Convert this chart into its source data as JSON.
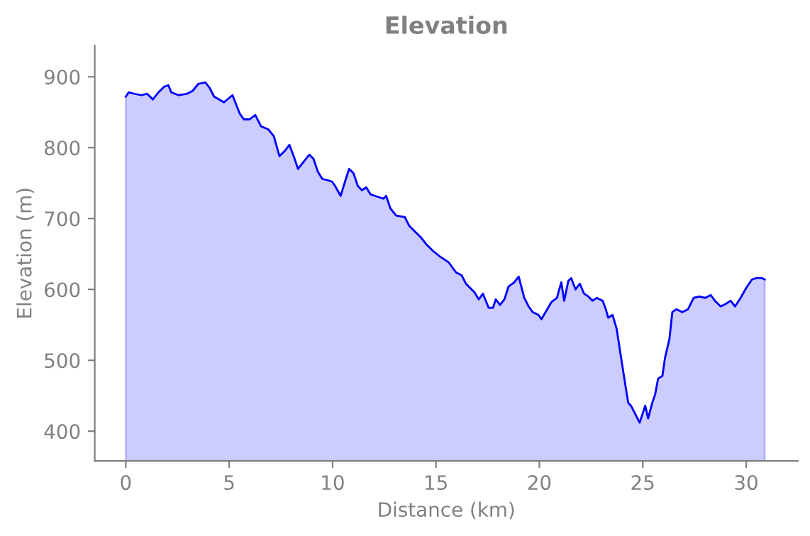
{
  "chart_data": {
    "type": "area",
    "title": "Elevation",
    "xlabel": "Distance (km)",
    "ylabel": "Elevation (m)",
    "xlim": [
      -1.5,
      32.5
    ],
    "ylim": [
      358,
      944
    ],
    "xticks": [
      0,
      5,
      10,
      15,
      20,
      25,
      30
    ],
    "yticks": [
      400,
      500,
      600,
      700,
      800,
      900
    ],
    "grid": false,
    "legend": false,
    "series": [
      {
        "color": "#0000ff",
        "x": [
          0,
          0.14,
          0.41,
          0.76,
          1.03,
          1.31,
          1.58,
          1.86,
          2.06,
          2.2,
          2.55,
          2.96,
          3.23,
          3.51,
          3.85,
          4.06,
          4.27,
          4.75,
          5.16,
          5.51,
          5.71,
          5.99,
          6.26,
          6.54,
          6.88,
          7.16,
          7.43,
          7.71,
          7.91,
          8.12,
          8.33,
          8.6,
          8.88,
          9.08,
          9.29,
          9.5,
          9.77,
          9.98,
          10.12,
          10.39,
          10.6,
          10.8,
          11.01,
          11.22,
          11.42,
          11.63,
          11.84,
          12.46,
          12.59,
          12.8,
          13.08,
          13.49,
          13.7,
          13.97,
          14.25,
          14.52,
          14.87,
          15.21,
          15.62,
          15.97,
          16.24,
          16.45,
          16.86,
          17.07,
          17.27,
          17.55,
          17.76,
          17.89,
          18.1,
          18.31,
          18.51,
          18.79,
          19.0,
          19.27,
          19.48,
          19.68,
          19.96,
          20.1,
          20.3,
          20.58,
          20.85,
          21.06,
          21.2,
          21.4,
          21.54,
          21.75,
          21.96,
          22.16,
          22.37,
          22.57,
          22.78,
          23.06,
          23.19,
          23.33,
          23.54,
          23.74,
          23.95,
          24.09,
          24.23,
          24.3,
          24.43,
          24.64,
          24.85,
          25.12,
          25.26,
          25.46,
          25.6,
          25.74,
          25.95,
          26.08,
          26.29,
          26.43,
          26.63,
          26.91,
          27.19,
          27.46,
          27.74,
          28.01,
          28.29,
          28.49,
          28.77,
          29.04,
          29.25,
          29.46,
          29.73,
          30.0,
          30.28,
          30.49,
          30.76,
          30.9
        ],
        "values": [
          872,
          878,
          876,
          874,
          876,
          868,
          878,
          886,
          888,
          878,
          874,
          876,
          880,
          890,
          892,
          884,
          872,
          864,
          874,
          848,
          840,
          840,
          846,
          830,
          826,
          816,
          788,
          796,
          804,
          788,
          770,
          780,
          790,
          784,
          766,
          756,
          754,
          752,
          746,
          732,
          752,
          770,
          764,
          746,
          740,
          744,
          734,
          728,
          732,
          714,
          704,
          702,
          690,
          682,
          674,
          664,
          654,
          646,
          638,
          624,
          620,
          608,
          596,
          586,
          594,
          574,
          574,
          586,
          578,
          586,
          604,
          610,
          618,
          588,
          576,
          568,
          564,
          558,
          568,
          582,
          588,
          610,
          584,
          612,
          616,
          600,
          608,
          594,
          590,
          584,
          588,
          584,
          574,
          560,
          564,
          544,
          504,
          478,
          452,
          440,
          436,
          424,
          412,
          436,
          418,
          440,
          452,
          474,
          478,
          504,
          530,
          568,
          572,
          568,
          572,
          588,
          590,
          588,
          592,
          584,
          576,
          580,
          584,
          576,
          588,
          602,
          614,
          616,
          616,
          614
        ]
      }
    ]
  }
}
